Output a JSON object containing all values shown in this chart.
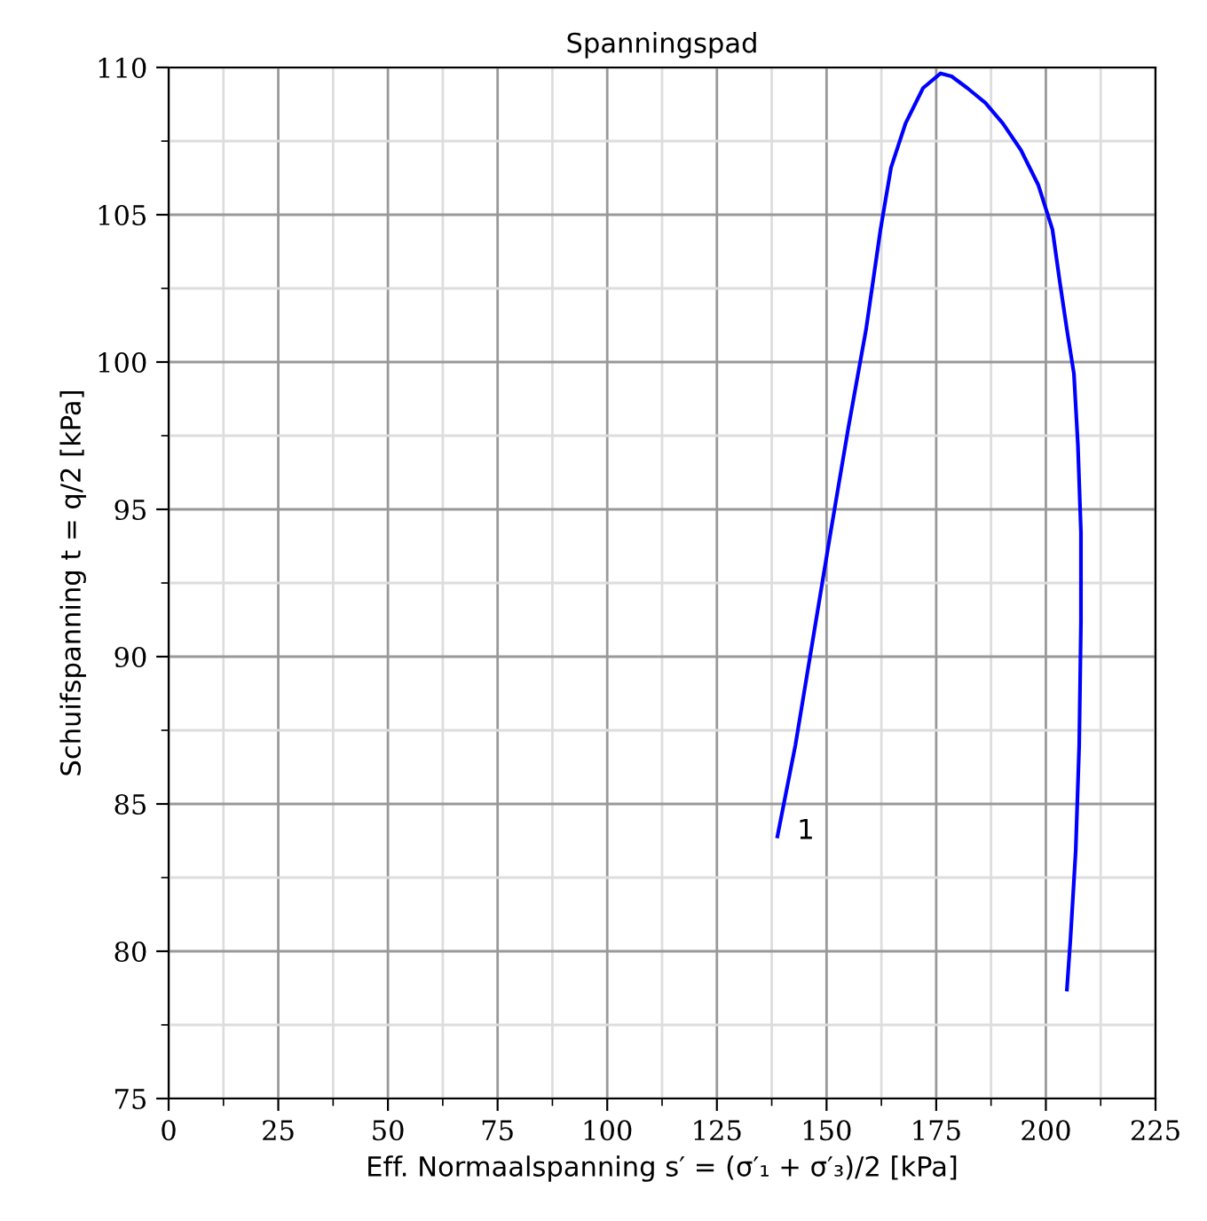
{
  "chart_data": {
    "type": "line",
    "title": "Spanningspad",
    "xlabel": "Eff. Normaalspanning s′ = (σ′₁ + σ′₃)/2 [kPa]",
    "ylabel": "Schuifspanning t = q/2 [kPa]",
    "xlim": [
      0,
      225
    ],
    "ylim": [
      75,
      110
    ],
    "xticks": [
      0,
      25,
      50,
      75,
      100,
      125,
      150,
      175,
      200,
      225
    ],
    "yticks": [
      75,
      80,
      85,
      90,
      95,
      100,
      105,
      110
    ],
    "grid": true,
    "line_style": "solid",
    "marker": "none",
    "annotations": [
      "1"
    ],
    "series": [
      {
        "color": "#0000ff",
        "x": [
          138.8,
          142.9,
          146.9,
          150.9,
          155.0,
          159.0,
          162.3,
          164.7,
          168.0,
          172.0,
          176.0,
          178.5,
          182.1,
          186.2,
          190.2,
          194.3,
          198.3,
          201.5,
          203.2,
          204.8,
          206.4,
          207.3,
          208.0,
          208.0,
          207.6,
          206.8,
          205.6,
          204.8
        ],
        "values": [
          83.9,
          87.0,
          90.6,
          94.2,
          97.8,
          101.1,
          104.5,
          106.6,
          108.1,
          109.3,
          109.8,
          109.7,
          109.3,
          108.8,
          108.1,
          107.2,
          106.0,
          104.5,
          102.7,
          101.1,
          99.6,
          97.2,
          94.2,
          91.2,
          87.0,
          83.4,
          80.4,
          78.7
        ]
      }
    ]
  }
}
